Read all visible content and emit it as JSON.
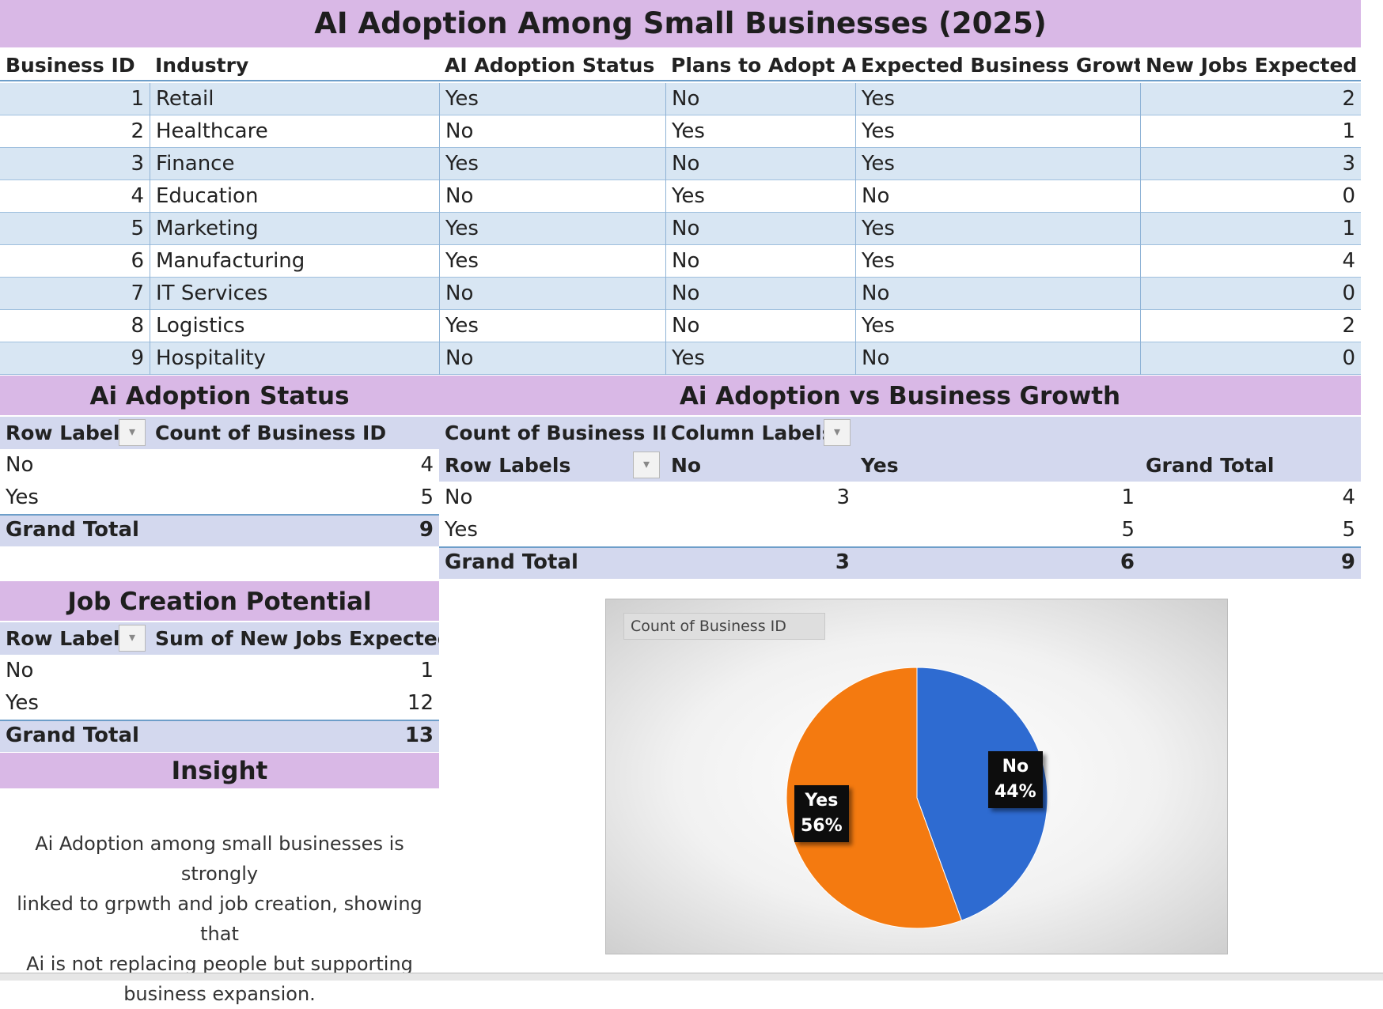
{
  "main_table": {
    "title": "AI Adoption Among Small Businesses (2025)",
    "headers": [
      "Business ID",
      "Industry",
      "AI Adoption Status",
      "Plans to Adopt AI",
      "Expected Business Growth",
      "New Jobs Expected"
    ],
    "rows": [
      [
        "1",
        "Retail",
        "Yes",
        "No",
        "Yes",
        "2"
      ],
      [
        "2",
        "Healthcare",
        "No",
        "Yes",
        "Yes",
        "1"
      ],
      [
        "3",
        "Finance",
        "Yes",
        "No",
        "Yes",
        "3"
      ],
      [
        "4",
        "Education",
        "No",
        "Yes",
        "No",
        "0"
      ],
      [
        "5",
        "Marketing",
        "Yes",
        "No",
        "Yes",
        "1"
      ],
      [
        "6",
        "Manufacturing",
        "Yes",
        "No",
        "Yes",
        "4"
      ],
      [
        "7",
        "IT Services",
        "No",
        "No",
        "No",
        "0"
      ],
      [
        "8",
        "Logistics",
        "Yes",
        "No",
        "Yes",
        "2"
      ],
      [
        "9",
        "Hospitality",
        "No",
        "Yes",
        "No",
        "0"
      ]
    ]
  },
  "adoption_status": {
    "title": "Ai Adoption Status",
    "header_rows": "Row Labels",
    "header_value": "Count of Business ID",
    "rows": [
      [
        "No",
        "4"
      ],
      [
        "Yes",
        "5"
      ]
    ],
    "total_label": "Grand Total",
    "total_value": "9"
  },
  "adoption_vs_growth": {
    "title": "Ai Adoption vs Business Growth",
    "value_label": "Count of Business ID",
    "column_labels": "Column Labels",
    "row_labels": "Row Labels",
    "columns": [
      "No",
      "Yes",
      "Grand Total"
    ],
    "rows": [
      [
        "No",
        "3",
        "1",
        "4"
      ],
      [
        "Yes",
        "",
        "5",
        "5"
      ]
    ],
    "total_row": [
      "Grand Total",
      "3",
      "6",
      "9"
    ]
  },
  "job_creation": {
    "title": "Job Creation Potential",
    "header_rows": "Row Labels",
    "header_value": "Sum of New Jobs Expected",
    "rows": [
      [
        "No",
        "1"
      ],
      [
        "Yes",
        "12"
      ]
    ],
    "total_label": "Grand Total",
    "total_value": "13"
  },
  "insight": {
    "title": "Insight",
    "lines": [
      "Ai Adoption among small businesses is strongly",
      "linked to grpwth and job creation, showing that",
      "Ai is not replacing people but supporting",
      "business expansion."
    ]
  },
  "chart_data": {
    "type": "pie",
    "title": "Count of Business ID",
    "categories": [
      "No",
      "Yes"
    ],
    "values": [
      4,
      5
    ],
    "labels": [
      [
        "No",
        "44%"
      ],
      [
        "Yes",
        "56%"
      ]
    ],
    "colors": [
      "#2e6bd1",
      "#f47a10"
    ]
  },
  "colors": {
    "title_band": "#d9b8e6",
    "stripe": "#d8e6f3",
    "pivot_header": "#d3d8ee",
    "grid_border": "#6d9ec9"
  }
}
